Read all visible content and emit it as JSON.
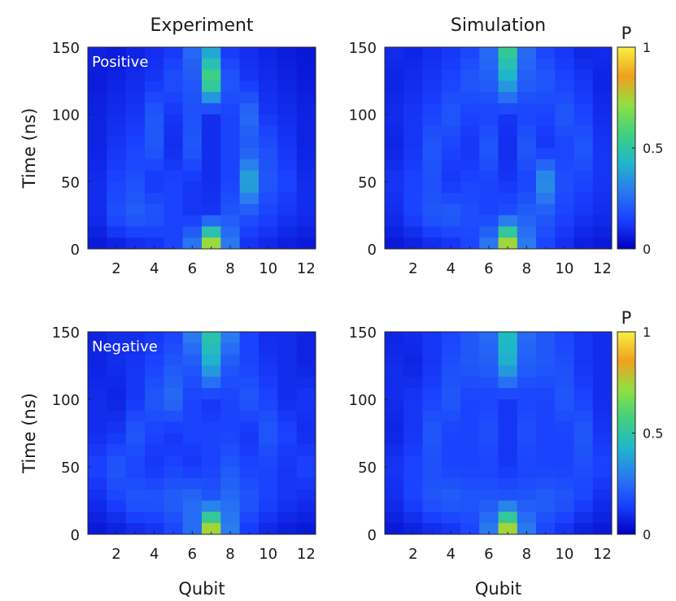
{
  "figure": {
    "col_titles": [
      "Experiment",
      "Simulation"
    ],
    "ylabel": "Time (ns)",
    "xlabel": "Qubit",
    "panel_tags": {
      "top": "Positive",
      "bottom": "Negative"
    },
    "colorbar": {
      "label": "P",
      "ticks": [
        0,
        0.5,
        1
      ],
      "tick_labels": [
        "0",
        "0.5",
        "1"
      ]
    },
    "colormap": [
      "#0000c0",
      "#1a40ff",
      "#2a7af0",
      "#1fb8c8",
      "#40d080",
      "#90e040",
      "#f0a020",
      "#f8f040"
    ]
  },
  "chart_data": [
    {
      "type": "heatmap",
      "name": "experiment-positive",
      "title": "Experiment",
      "tag": "Positive",
      "xlabel": "",
      "ylabel": "Time (ns)",
      "x_range": [
        0.5,
        12.5
      ],
      "y_range": [
        0,
        150
      ],
      "xticks": [
        2,
        4,
        6,
        8,
        10,
        12
      ],
      "yticks": [
        0,
        50,
        100,
        150
      ],
      "columns": [
        1,
        2,
        3,
        4,
        5,
        6,
        7,
        8,
        9,
        10,
        11,
        12
      ],
      "time_rows": [
        150,
        125,
        100,
        75,
        50,
        25,
        0
      ],
      "values": [
        [
          0.08,
          0.06,
          0.08,
          0.1,
          0.12,
          0.25,
          0.35,
          0.12,
          0.1,
          0.08,
          0.06,
          0.05
        ],
        [
          0.06,
          0.08,
          0.1,
          0.12,
          0.18,
          0.2,
          0.6,
          0.2,
          0.12,
          0.1,
          0.08,
          0.06
        ],
        [
          0.08,
          0.1,
          0.12,
          0.2,
          0.12,
          0.18,
          0.1,
          0.15,
          0.25,
          0.12,
          0.1,
          0.08
        ],
        [
          0.08,
          0.12,
          0.15,
          0.2,
          0.1,
          0.2,
          0.1,
          0.15,
          0.2,
          0.18,
          0.12,
          0.08
        ],
        [
          0.1,
          0.15,
          0.18,
          0.12,
          0.15,
          0.12,
          0.1,
          0.15,
          0.4,
          0.2,
          0.15,
          0.1
        ],
        [
          0.1,
          0.18,
          0.22,
          0.2,
          0.15,
          0.12,
          0.12,
          0.2,
          0.18,
          0.15,
          0.12,
          0.1
        ],
        [
          0.05,
          0.06,
          0.08,
          0.1,
          0.15,
          0.3,
          0.85,
          0.3,
          0.1,
          0.08,
          0.06,
          0.05
        ]
      ]
    },
    {
      "type": "heatmap",
      "name": "simulation-positive",
      "title": "Simulation",
      "xlabel": "",
      "ylabel": "",
      "x_range": [
        0.5,
        12.5
      ],
      "y_range": [
        0,
        150
      ],
      "xticks": [
        2,
        4,
        6,
        8,
        10,
        12
      ],
      "yticks": [
        0,
        50,
        100,
        150
      ],
      "columns": [
        1,
        2,
        3,
        4,
        5,
        6,
        7,
        8,
        9,
        10,
        11,
        12
      ],
      "time_rows": [
        150,
        125,
        100,
        75,
        50,
        25,
        0
      ],
      "values": [
        [
          0.1,
          0.08,
          0.1,
          0.12,
          0.15,
          0.25,
          0.55,
          0.25,
          0.15,
          0.12,
          0.08,
          0.1
        ],
        [
          0.08,
          0.1,
          0.12,
          0.15,
          0.2,
          0.22,
          0.4,
          0.22,
          0.2,
          0.15,
          0.12,
          0.08
        ],
        [
          0.1,
          0.12,
          0.15,
          0.2,
          0.15,
          0.15,
          0.12,
          0.15,
          0.15,
          0.2,
          0.15,
          0.1
        ],
        [
          0.08,
          0.12,
          0.2,
          0.15,
          0.12,
          0.2,
          0.1,
          0.2,
          0.12,
          0.15,
          0.2,
          0.12
        ],
        [
          0.12,
          0.15,
          0.18,
          0.12,
          0.15,
          0.15,
          0.12,
          0.15,
          0.35,
          0.18,
          0.15,
          0.12
        ],
        [
          0.1,
          0.15,
          0.2,
          0.22,
          0.18,
          0.15,
          0.18,
          0.22,
          0.2,
          0.15,
          0.12,
          0.1
        ],
        [
          0.05,
          0.06,
          0.08,
          0.1,
          0.15,
          0.3,
          0.85,
          0.3,
          0.15,
          0.1,
          0.06,
          0.05
        ]
      ]
    },
    {
      "type": "heatmap",
      "name": "experiment-negative",
      "title": "",
      "tag": "Negative",
      "xlabel": "Qubit",
      "ylabel": "Time (ns)",
      "x_range": [
        0.5,
        12.5
      ],
      "y_range": [
        0,
        150
      ],
      "xticks": [
        2,
        4,
        6,
        8,
        10,
        12
      ],
      "yticks": [
        0,
        50,
        100,
        150
      ],
      "columns": [
        1,
        2,
        3,
        4,
        5,
        6,
        7,
        8,
        9,
        10,
        11,
        12
      ],
      "time_rows": [
        150,
        125,
        100,
        75,
        50,
        25,
        0
      ],
      "values": [
        [
          0.08,
          0.1,
          0.1,
          0.12,
          0.15,
          0.3,
          0.5,
          0.3,
          0.15,
          0.1,
          0.1,
          0.08
        ],
        [
          0.08,
          0.1,
          0.12,
          0.15,
          0.2,
          0.2,
          0.4,
          0.2,
          0.15,
          0.12,
          0.1,
          0.08
        ],
        [
          0.1,
          0.08,
          0.12,
          0.2,
          0.25,
          0.15,
          0.12,
          0.15,
          0.2,
          0.15,
          0.1,
          0.12
        ],
        [
          0.1,
          0.12,
          0.2,
          0.15,
          0.12,
          0.15,
          0.15,
          0.15,
          0.12,
          0.2,
          0.15,
          0.1
        ],
        [
          0.15,
          0.2,
          0.15,
          0.12,
          0.15,
          0.12,
          0.15,
          0.2,
          0.15,
          0.15,
          0.12,
          0.15
        ],
        [
          0.1,
          0.15,
          0.2,
          0.2,
          0.22,
          0.25,
          0.2,
          0.25,
          0.2,
          0.15,
          0.12,
          0.1
        ],
        [
          0.05,
          0.06,
          0.08,
          0.1,
          0.15,
          0.25,
          0.85,
          0.3,
          0.12,
          0.08,
          0.06,
          0.05
        ]
      ]
    },
    {
      "type": "heatmap",
      "name": "simulation-negative",
      "title": "",
      "xlabel": "Qubit",
      "ylabel": "",
      "x_range": [
        0.5,
        12.5
      ],
      "y_range": [
        0,
        150
      ],
      "xticks": [
        2,
        4,
        6,
        8,
        10,
        12
      ],
      "yticks": [
        0,
        50,
        100,
        150
      ],
      "columns": [
        1,
        2,
        3,
        4,
        5,
        6,
        7,
        8,
        9,
        10,
        11,
        12
      ],
      "time_rows": [
        150,
        125,
        100,
        75,
        50,
        25,
        0
      ],
      "values": [
        [
          0.08,
          0.1,
          0.12,
          0.15,
          0.2,
          0.25,
          0.45,
          0.25,
          0.2,
          0.15,
          0.12,
          0.1
        ],
        [
          0.1,
          0.08,
          0.12,
          0.18,
          0.2,
          0.22,
          0.4,
          0.22,
          0.2,
          0.18,
          0.12,
          0.1
        ],
        [
          0.1,
          0.12,
          0.15,
          0.2,
          0.15,
          0.15,
          0.12,
          0.15,
          0.15,
          0.2,
          0.15,
          0.1
        ],
        [
          0.08,
          0.12,
          0.2,
          0.15,
          0.15,
          0.18,
          0.12,
          0.18,
          0.15,
          0.15,
          0.2,
          0.12
        ],
        [
          0.12,
          0.15,
          0.18,
          0.15,
          0.15,
          0.15,
          0.12,
          0.15,
          0.15,
          0.15,
          0.18,
          0.15
        ],
        [
          0.1,
          0.15,
          0.2,
          0.22,
          0.2,
          0.2,
          0.2,
          0.2,
          0.22,
          0.2,
          0.15,
          0.1
        ],
        [
          0.05,
          0.06,
          0.08,
          0.1,
          0.15,
          0.3,
          0.85,
          0.3,
          0.15,
          0.1,
          0.06,
          0.05
        ]
      ]
    }
  ]
}
